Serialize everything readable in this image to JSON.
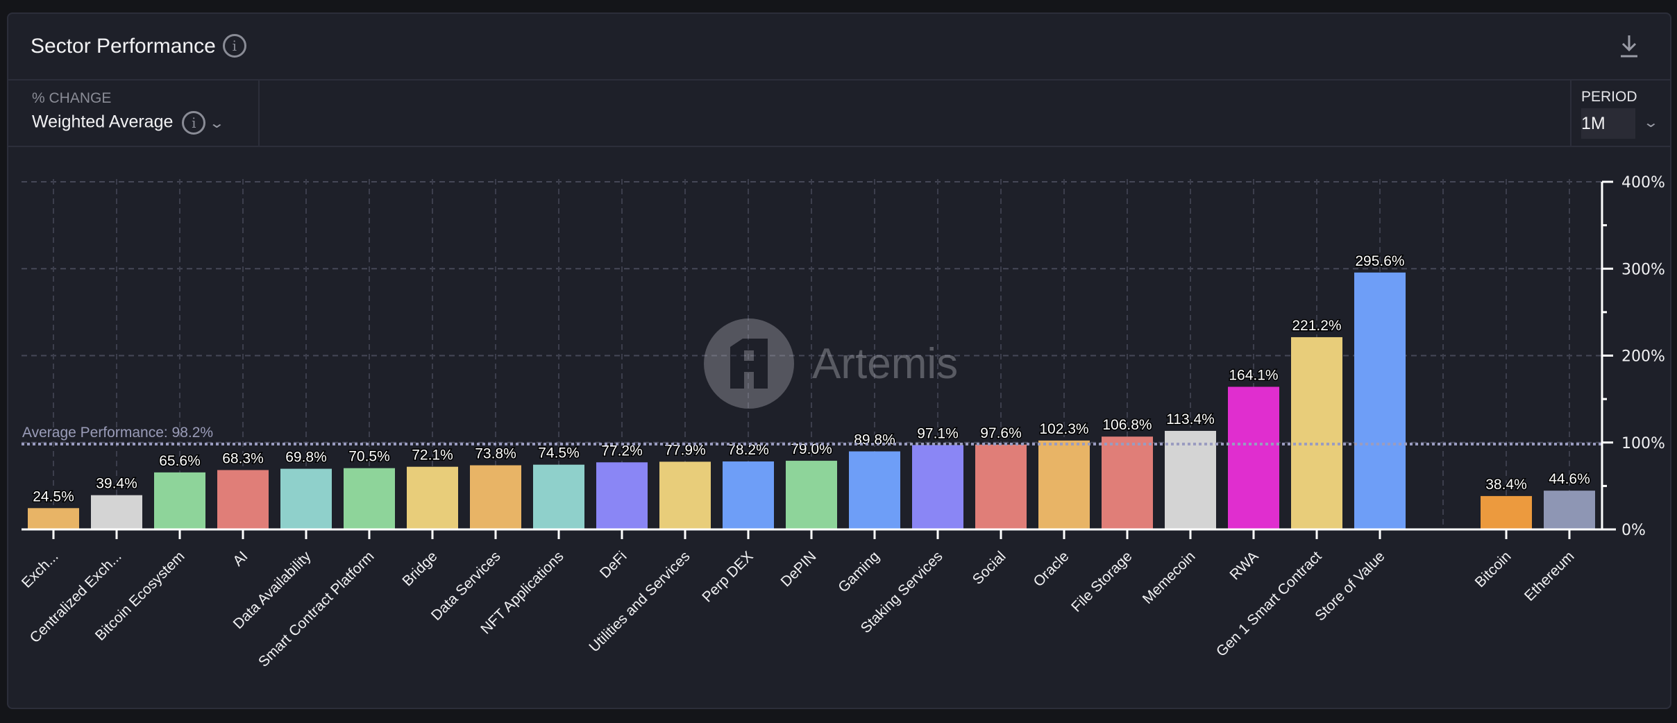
{
  "header": {
    "title": "Sector Performance",
    "info_icon": "info-icon",
    "download_icon": "download-icon"
  },
  "controls": {
    "metric_label": "% CHANGE",
    "metric_value": "Weighted Average",
    "period_label": "PERIOD",
    "period_value": "1M"
  },
  "watermark": "Artemis",
  "chart_data": {
    "type": "bar",
    "title": "",
    "xlabel": "",
    "ylabel": "",
    "ylim": [
      0,
      400
    ],
    "yticks": [
      "0%",
      "100%",
      "200%",
      "300%",
      "400%"
    ],
    "ytick_values": [
      0,
      100,
      200,
      300,
      400
    ],
    "grid": true,
    "y_axis_side": "right",
    "average": {
      "label": "Average Performance: 98.2%",
      "value": 98.2
    },
    "categories": [
      "Exch...",
      "Centralized Exch...",
      "Bitcoin Ecosystem",
      "AI",
      "Data Availability",
      "Smart Contract Platform",
      "Bridge",
      "Data Services",
      "NFT Applications",
      "DeFi",
      "Utilities and Services",
      "Perp DEX",
      "DePIN",
      "Gaming",
      "Staking Services",
      "Social",
      "Oracle",
      "File Storage",
      "Memecoin",
      "RWA",
      "Gen 1 Smart Contract",
      "Store of Value",
      "",
      "Bitcoin",
      "Ethereum"
    ],
    "values": [
      24.5,
      39.4,
      65.6,
      68.3,
      69.8,
      70.5,
      72.1,
      73.8,
      74.5,
      77.2,
      77.9,
      78.2,
      79.0,
      89.8,
      97.1,
      97.6,
      102.3,
      106.8,
      113.4,
      164.1,
      221.2,
      295.6,
      null,
      38.4,
      44.6
    ],
    "labels": [
      "24.5%",
      "39.4%",
      "65.6%",
      "68.3%",
      "69.8%",
      "70.5%",
      "72.1%",
      "73.8%",
      "74.5%",
      "77.2%",
      "77.9%",
      "78.2%",
      "79.0%",
      "89.8%",
      "97.1%",
      "97.6%",
      "102.3%",
      "106.8%",
      "113.4%",
      "164.1%",
      "221.2%",
      "295.6%",
      "",
      "38.4%",
      "44.6%"
    ],
    "colors": [
      "#e8b466",
      "#d4d4d4",
      "#8ed49a",
      "#e07e78",
      "#8fd0cb",
      "#8ed49a",
      "#e8cd7a",
      "#e8b466",
      "#8fd0cb",
      "#8a86f5",
      "#e8cd7a",
      "#6e9ef7",
      "#8ed49a",
      "#6e9ef7",
      "#8a86f5",
      "#e07e78",
      "#e8b466",
      "#e07e78",
      "#d4d4d4",
      "#e02ecf",
      "#e8cd7a",
      "#6e9ef7",
      null,
      "#ec9a3e",
      "#8e96b4"
    ]
  }
}
